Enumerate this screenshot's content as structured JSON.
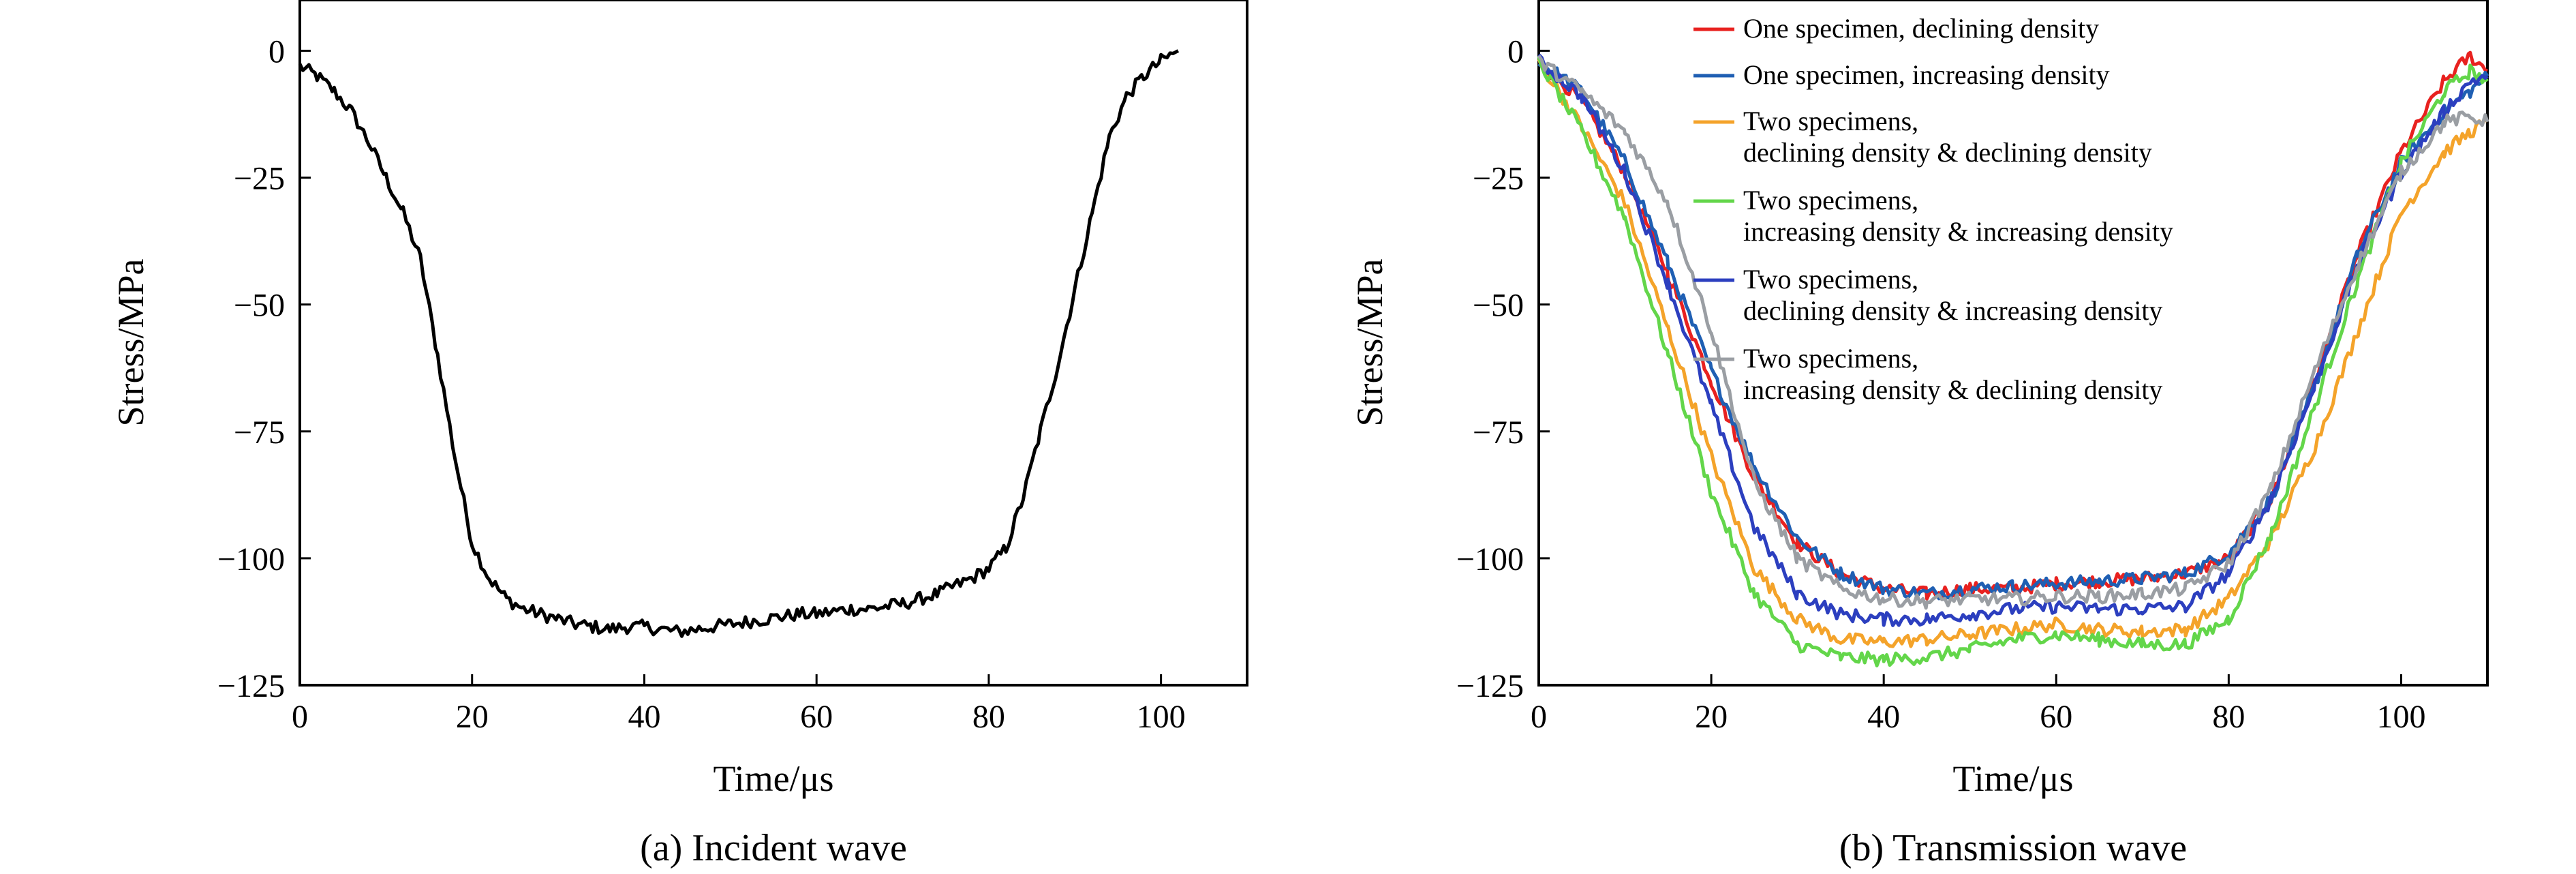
{
  "chart_data": [
    {
      "type": "line",
      "caption": "(a) Incident wave",
      "xlabel": "Time/μs",
      "ylabel": "Stress/MPa",
      "xlim": [
        0,
        110
      ],
      "ylim": [
        -125,
        10
      ],
      "xticks": [
        0,
        20,
        40,
        60,
        80,
        100
      ],
      "xtick_labels": [
        "0",
        "20",
        "40",
        "60",
        "80",
        "100"
      ],
      "yticks": [
        0,
        -25,
        -50,
        -75,
        -100,
        -125
      ],
      "ytick_labels": [
        "0",
        "−25",
        "−50",
        "−75",
        "−100",
        "−125"
      ],
      "grid": false,
      "series": [
        {
          "color": "#000000",
          "x": [
            0,
            2,
            4,
            6,
            8,
            10,
            12,
            14,
            16,
            18,
            20,
            22,
            24,
            26,
            28,
            30,
            32,
            34,
            36,
            38,
            40,
            42,
            44,
            46,
            48,
            50,
            52,
            54,
            56,
            58,
            60,
            62,
            64,
            66,
            68,
            70,
            72,
            74,
            76,
            78,
            80,
            82,
            84,
            86,
            88,
            90,
            92,
            94,
            96,
            98,
            100,
            102
          ],
          "y": [
            -3,
            -5,
            -8,
            -12,
            -18,
            -25,
            -32,
            -41,
            -60,
            -80,
            -97,
            -104,
            -108,
            -110,
            -111,
            -112,
            -113,
            -113.5,
            -114,
            -113.5,
            -113.5,
            -114,
            -114.5,
            -114,
            -113.5,
            -113,
            -112.5,
            -112,
            -111.5,
            -111,
            -111,
            -110.5,
            -110,
            -110,
            -109.5,
            -109,
            -108,
            -107,
            -105.5,
            -104,
            -102,
            -98,
            -88,
            -75,
            -62,
            -47,
            -32,
            -17,
            -9,
            -5,
            -2,
            0
          ]
        }
      ]
    },
    {
      "type": "line",
      "caption": "(b) Transmission wave",
      "xlabel": "Time/μs",
      "ylabel": "Stress/MPa",
      "xlim": [
        0,
        110
      ],
      "ylim": [
        -125,
        10
      ],
      "xticks": [
        0,
        20,
        40,
        60,
        80,
        100
      ],
      "xtick_labels": [
        "0",
        "20",
        "40",
        "60",
        "80",
        "100"
      ],
      "yticks": [
        0,
        -25,
        -50,
        -75,
        -100,
        -125
      ],
      "ytick_labels": [
        "0",
        "−25",
        "−50",
        "−75",
        "−100",
        "−125"
      ],
      "grid": false,
      "legend_position": "top-right",
      "x": [
        0,
        5,
        10,
        15,
        20,
        25,
        30,
        35,
        40,
        45,
        50,
        55,
        60,
        65,
        70,
        75,
        80,
        85,
        90,
        95,
        100,
        105,
        108,
        110
      ],
      "series": [
        {
          "name": "One specimen, declining density",
          "color": "#e8211f",
          "y": [
            -2,
            -10,
            -24,
            -44,
            -65,
            -84,
            -97,
            -103,
            -106,
            -107,
            -106,
            -106,
            -105,
            -104.5,
            -104,
            -103,
            -100,
            -88,
            -65,
            -40,
            -20,
            -6,
            -1,
            -4
          ]
        },
        {
          "name": "One specimen, increasing density",
          "color": "#1f5fb3",
          "y": [
            -2,
            -8,
            -22,
            -42,
            -63,
            -82,
            -96,
            -103,
            -106,
            -107,
            -106,
            -105.5,
            -105,
            -104.5,
            -104,
            -103,
            -99,
            -88,
            -66,
            -40,
            -22,
            -12,
            -8,
            -5
          ]
        },
        {
          "name": "Two specimens,\ndeclining density & declining density",
          "color": "#f4a32a",
          "y": [
            -2,
            -15,
            -30,
            -55,
            -80,
            -102,
            -112,
            -116,
            -116.5,
            -116,
            -115,
            -114,
            -113,
            -114,
            -114.5,
            -114,
            -108,
            -96,
            -78,
            -55,
            -32,
            -20,
            -16,
            -14
          ]
        },
        {
          "name": "Two specimens,\nincreasing density & increasing density",
          "color": "#63d64a",
          "y": [
            -2,
            -16,
            -33,
            -60,
            -87,
            -107,
            -117,
            -119.5,
            -120,
            -119.5,
            -118,
            -116,
            -115,
            -116,
            -117,
            -117,
            -112,
            -95,
            -70,
            -45,
            -22,
            -8,
            -4,
            -6
          ]
        },
        {
          "name": "Two specimens,\ndeclining density & increasing density",
          "color": "#2c3fbf",
          "y": [
            -2,
            -9,
            -24,
            -46,
            -70,
            -94,
            -107,
            -111,
            -112,
            -112,
            -111,
            -110,
            -109.5,
            -110,
            -110,
            -109.5,
            -103,
            -88,
            -66,
            -42,
            -24,
            -12,
            -6,
            -5
          ]
        },
        {
          "name": "Two specimens,\nincreasing density & declining density",
          "color": "#9a9ea3",
          "y": [
            -2,
            -8,
            -16,
            -30,
            -55,
            -85,
            -100,
            -106,
            -108,
            -108.5,
            -108,
            -108,
            -107.5,
            -107.5,
            -107,
            -106,
            -101,
            -86,
            -63,
            -42,
            -24,
            -14,
            -13,
            -14
          ]
        }
      ]
    }
  ]
}
